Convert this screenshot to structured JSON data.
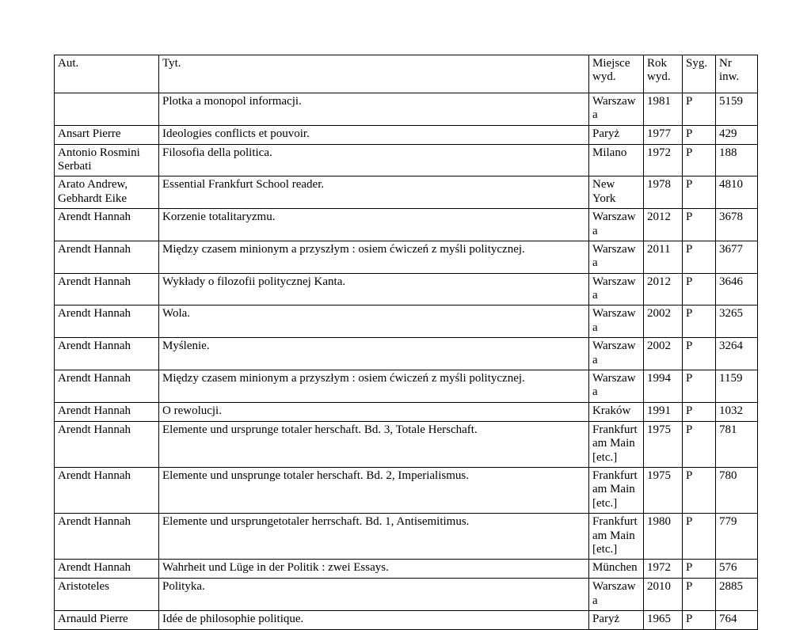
{
  "page": {
    "background_color": "#ffffff",
    "text_color": "#000000",
    "border_color": "#000000"
  },
  "table": {
    "columns": [
      {
        "key": "aut",
        "label": "Aut."
      },
      {
        "key": "tyt",
        "label": "Tyt."
      },
      {
        "key": "miejsce",
        "label": "Miejsce wyd."
      },
      {
        "key": "rok",
        "label": "Rok wyd."
      },
      {
        "key": "syg",
        "label": "Syg."
      },
      {
        "key": "nr",
        "label": "Nr inw."
      }
    ],
    "rows": [
      [
        "",
        "Plotka a monopol informacji.",
        "Warszawa",
        "1981",
        "P",
        "5159"
      ],
      [
        "Ansart Pierre",
        "Ideologies conflicts et pouvoir.",
        "Paryż",
        "1977",
        "P",
        "429"
      ],
      [
        "Antonio Rosmini Serbati",
        "Filosofia della politica.",
        "Milano",
        "1972",
        "P",
        "188"
      ],
      [
        "Arato Andrew, Gebhardt Eike",
        "Essential Frankfurt School reader.",
        "New York",
        "1978",
        "P",
        "4810"
      ],
      [
        "Arendt Hannah",
        "Korzenie totalitaryzmu.",
        "Warszawa",
        "2012",
        "P",
        "3678"
      ],
      [
        "Arendt Hannah",
        "Między czasem minionym a przyszłym : osiem ćwiczeń z myśli politycznej.",
        "Warszawa",
        "2011",
        "P",
        "3677"
      ],
      [
        "Arendt Hannah",
        "Wykłady o filozofii politycznej Kanta.",
        "Warszawa",
        "2012",
        "P",
        "3646"
      ],
      [
        "Arendt Hannah",
        "Wola.",
        "Warszawa",
        "2002",
        "P",
        "3265"
      ],
      [
        "Arendt Hannah",
        "Myślenie.",
        "Warszawa",
        "2002",
        "P",
        "3264"
      ],
      [
        "Arendt Hannah",
        "Między czasem minionym a przyszłym : osiem ćwiczeń z myśli politycznej.",
        "Warszawa",
        "1994",
        "P",
        "1159"
      ],
      [
        "Arendt Hannah",
        "O rewolucji.",
        "Kraków",
        "1991",
        "P",
        "1032"
      ],
      [
        "Arendt Hannah",
        "Elemente und ursprunge totaler herschaft. Bd. 3, Totale Herschaft.",
        "Frankfurt am Main [etc.]",
        "1975",
        "P",
        "781"
      ],
      [
        "Arendt Hannah",
        "Elemente und unsprunge totaler herschaft. Bd. 2, Imperialismus.",
        "Frankfurt am Main [etc.]",
        "1975",
        "P",
        "780"
      ],
      [
        "Arendt Hannah",
        "Elemente und ursprungetotaler herrschaft. Bd. 1, Antisemitimus.",
        "Frankfurt am Main [etc.]",
        "1980",
        "P",
        "779"
      ],
      [
        "Arendt Hannah",
        "Wahrheit und Lüge in der Politik : zwei Essays.",
        "München",
        "1972",
        "P",
        "576"
      ],
      [
        "Aristoteles",
        "Polityka.",
        "Warszawa",
        "2010",
        "P",
        "2885"
      ],
      [
        "Arnauld Pierre",
        "Idée de philosophie politique.",
        "Paryż",
        "1965",
        "P",
        "764"
      ]
    ]
  }
}
